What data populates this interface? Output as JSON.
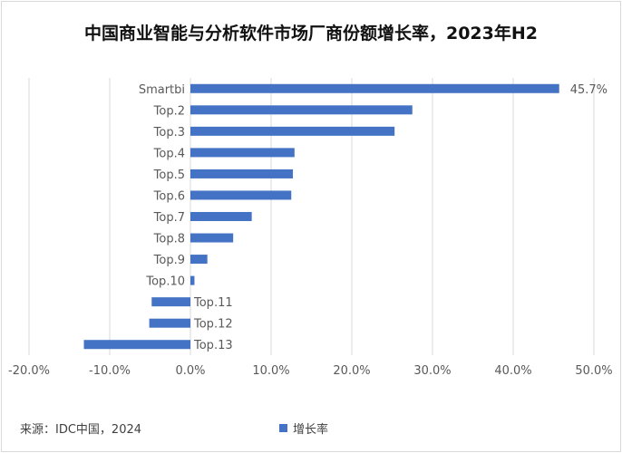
{
  "title": "中国商业智能与分析软件市场厂商份额增长率，2023年H2",
  "source": "来源：IDC中国，2024",
  "colors": {
    "bar": "#4472c4",
    "grid": "#d9d9d9",
    "text": "#595959"
  },
  "chart_data": {
    "type": "bar",
    "orientation": "horizontal",
    "categories": [
      "Smartbi",
      "Top.2",
      "Top.3",
      "Top.4",
      "Top.5",
      "Top.6",
      "Top.7",
      "Top.8",
      "Top.9",
      "Top.10",
      "Top.11",
      "Top.12",
      "Top.13"
    ],
    "series": [
      {
        "name": "增长率",
        "values": [
          45.7,
          27.5,
          25.3,
          12.9,
          12.7,
          12.5,
          7.6,
          5.3,
          2.1,
          0.5,
          -4.8,
          -5.1,
          -13.2
        ]
      }
    ],
    "data_labels": {
      "Smartbi": "45.7%"
    },
    "xlim": [
      -20,
      50
    ],
    "xticks": [
      "-20.0%",
      "-10.0%",
      "0.0%",
      "10.0%",
      "20.0%",
      "30.0%",
      "40.0%",
      "50.0%"
    ],
    "grid": "vertical",
    "legend": "bottom"
  }
}
